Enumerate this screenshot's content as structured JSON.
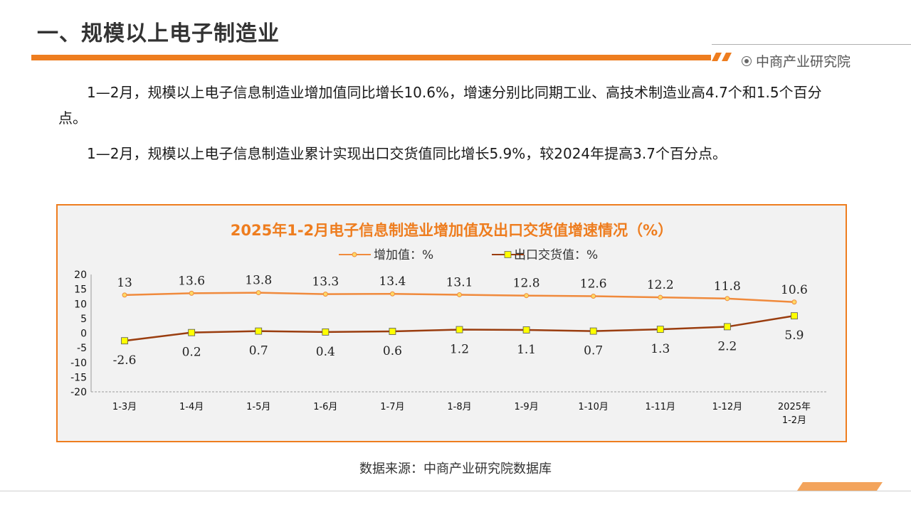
{
  "slide": {
    "title": "一、规模以上电子制造业",
    "brand": "中商产业研究院",
    "paragraph1": "1—2月，规模以上电子信息制造业增加值同比增长10.6%，增速分别比同期工业、高技术制造业高4.7个和1.5个百分点。",
    "paragraph2": "1—2月，规模以上电子信息制造业累计实现出口交货值同比增长5.9%，较2024年提高3.7个百分点。",
    "source": "数据来源：中商产业研究院数据库"
  },
  "colors": {
    "accent": "#ee7d1f",
    "series1_line": "#f08a3c",
    "series2_line": "#9a3d0f",
    "series2_marker": "#ffff00"
  },
  "chart_data": {
    "type": "line",
    "title": "2025年1-2月电子信息制造业增加值及出口交货值增速情况（%）",
    "categories": [
      "1-3月",
      "1-4月",
      "1-5月",
      "1-6月",
      "1-7月",
      "1-8月",
      "1-9月",
      "1-10月",
      "1-11月",
      "1-12月",
      "2025年\n1-2月"
    ],
    "series": [
      {
        "name": "增加值：%",
        "values": [
          13,
          13.6,
          13.8,
          13.3,
          13.4,
          13.1,
          12.8,
          12.6,
          12.2,
          11.8,
          10.6
        ]
      },
      {
        "name": "出口交货值：%",
        "values": [
          -2.6,
          0.2,
          0.7,
          0.4,
          0.6,
          1.2,
          1.1,
          0.7,
          1.3,
          2.2,
          5.9
        ]
      }
    ],
    "ylim": [
      -20,
      20
    ],
    "yticks": [
      20,
      15,
      10,
      5,
      0,
      -5,
      -10,
      -15,
      -20
    ],
    "legend": "top",
    "grid": false
  }
}
